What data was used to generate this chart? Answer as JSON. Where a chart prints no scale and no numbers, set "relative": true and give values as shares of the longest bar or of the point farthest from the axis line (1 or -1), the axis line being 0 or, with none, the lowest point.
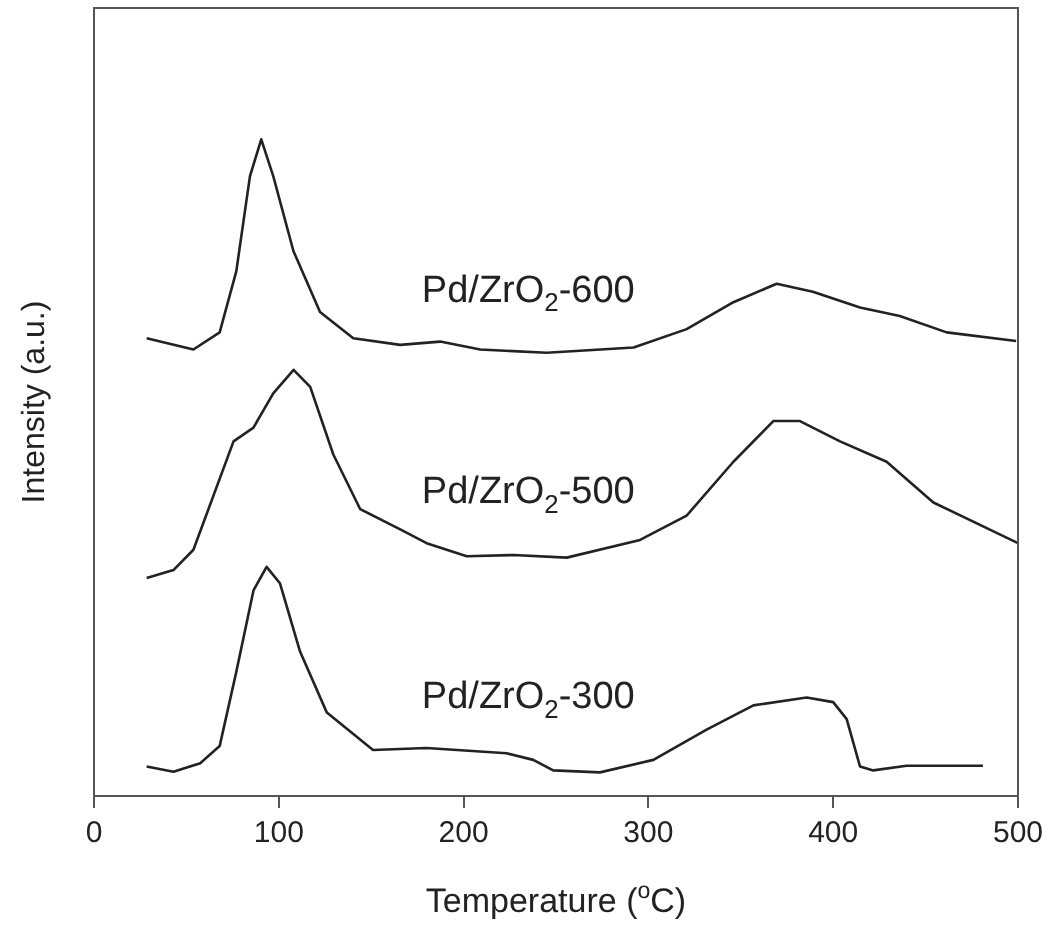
{
  "chart_data": {
    "type": "line",
    "xlabel": "Temperature ($^{o}$C)",
    "ylabel": "Intensity (a.u.)",
    "relative": true,
    "xlim": [
      0,
      500
    ],
    "xticks": [
      0,
      100,
      200,
      300,
      400,
      500
    ],
    "marker": "none",
    "line_style": "solid",
    "series": [
      {
        "name": "Pd/ZrO$_{2}$-600",
        "color": "#222222",
        "x": [
          28.5,
          53.8,
          68,
          77,
          84.4,
          90.5,
          97,
          107.9,
          122.3,
          140.3,
          165.7,
          187.3,
          209,
          245,
          292,
          320.7,
          346,
          369.4,
          389,
          414.5,
          436,
          461.4,
          499
        ],
        "values": [
          0.697,
          0.68,
          0.706,
          0.799,
          0.944,
          1,
          0.944,
          0.83,
          0.737,
          0.697,
          0.687,
          0.692,
          0.68,
          0.675,
          0.683,
          0.711,
          0.752,
          0.78,
          0.768,
          0.744,
          0.731,
          0.706,
          0.693
        ]
      },
      {
        "name": "Pd/ZrO$_{2}$-500",
        "color": "#222222",
        "x": [
          28.5,
          43,
          53.8,
          75.5,
          86.3,
          97,
          108,
          117,
          129.5,
          144,
          165.7,
          180,
          201.7,
          227,
          255.8,
          295.5,
          320.7,
          346,
          367.6,
          382,
          403.7,
          428.9,
          454.2,
          500
        ],
        "values": [
          0.332,
          0.344,
          0.375,
          0.54,
          0.561,
          0.613,
          0.649,
          0.623,
          0.52,
          0.437,
          0.406,
          0.385,
          0.365,
          0.367,
          0.363,
          0.39,
          0.427,
          0.509,
          0.571,
          0.571,
          0.54,
          0.509,
          0.447,
          0.385
        ]
      },
      {
        "name": "Pd/ZrO$_{2}$-300",
        "color": "#222222",
        "x": [
          28.5,
          43,
          57.5,
          68,
          77,
          86.3,
          93.4,
          100.6,
          111.5,
          126,
          151,
          180,
          223.3,
          237.7,
          248.5,
          273.8,
          302.7,
          331.5,
          356.8,
          385.6,
          400,
          407.3,
          414.5,
          421.7,
          439.7,
          481
        ],
        "values": [
          0.045,
          0.037,
          0.05,
          0.076,
          0.189,
          0.313,
          0.349,
          0.324,
          0.22,
          0.127,
          0.07,
          0.073,
          0.065,
          0.055,
          0.039,
          0.036,
          0.055,
          0.101,
          0.138,
          0.15,
          0.143,
          0.117,
          0.045,
          0.039,
          0.046,
          0.046
        ]
      }
    ]
  }
}
